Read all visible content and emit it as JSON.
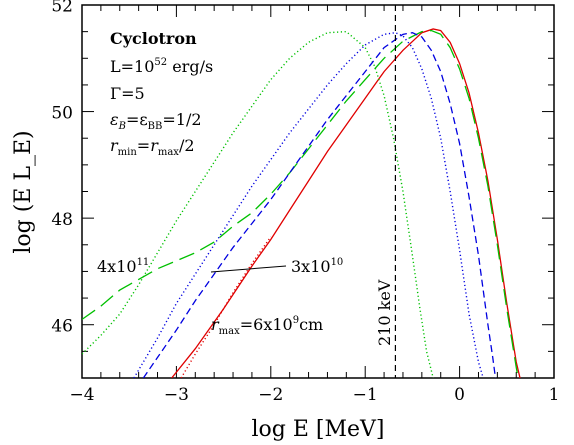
{
  "chart_data": {
    "type": "line",
    "xlabel": "log E [MeV]",
    "ylabel": "log (E L_E)",
    "xlim": [
      -4,
      1
    ],
    "ylim": [
      45,
      52
    ],
    "x_ticks": [
      "−4",
      "−3",
      "−2",
      "−1",
      "0",
      "1"
    ],
    "y_ticks": [
      "46",
      "48",
      "50",
      "52"
    ],
    "grid": false,
    "annotations": {
      "title": "Cyclotron",
      "luminosity": "L=10",
      "luminosity_exp": "52",
      "luminosity_unit": " erg/s",
      "gamma": "Γ=5",
      "eps_b": "ε",
      "eps_b_sub": "B",
      "eps_eq": "=ε",
      "eps_bb_sub": "BB",
      "eps_val": "=1/2",
      "r_min": "r",
      "r_min_sub": "min",
      "r_eq": "=r",
      "r_max_sub": "max",
      "r_val": "/2",
      "vline_label": "210 keV",
      "vline_x": -0.68,
      "label_4e11": "4x10",
      "label_4e11_exp": "11",
      "label_3e10": "3x10",
      "label_3e10_exp": "10",
      "label_6e9_r": "r",
      "label_6e9_sub": "max",
      "label_6e9_val": "=6x10",
      "label_6e9_exp": "9",
      "label_6e9_unit": "cm"
    },
    "series": [
      {
        "color": "#e00000",
        "dash": "solid",
        "x": [
          -3.05,
          -2.8,
          -2.5,
          -2.2,
          -2.0,
          -1.8,
          -1.6,
          -1.4,
          -1.2,
          -1.0,
          -0.8,
          -0.6,
          -0.4,
          -0.28,
          -0.2,
          -0.1,
          0.0,
          0.1,
          0.2,
          0.3,
          0.4,
          0.5,
          0.6,
          0.64
        ],
        "y": [
          45.0,
          45.55,
          46.3,
          47.1,
          47.6,
          48.15,
          48.7,
          49.25,
          49.75,
          50.25,
          50.75,
          51.15,
          51.48,
          51.55,
          51.52,
          51.3,
          50.9,
          50.35,
          49.6,
          48.7,
          47.6,
          46.4,
          45.3,
          45.0
        ]
      },
      {
        "color": "#e00000",
        "dash": "dotted",
        "x": [
          -2.95,
          -2.8,
          -2.6,
          -2.4,
          -2.2,
          -2.0
        ],
        "y": [
          45.0,
          45.45,
          46.0,
          46.6,
          47.15,
          47.65
        ]
      },
      {
        "color": "#00c000",
        "dash": "longdash",
        "x": [
          -4.0,
          -3.8,
          -3.6,
          -3.4,
          -3.2,
          -3.0,
          -2.8,
          -2.6,
          -2.4,
          -2.2,
          -2.0,
          -1.8,
          -1.6,
          -1.4,
          -1.2,
          -1.0,
          -0.8,
          -0.6,
          -0.4,
          -0.3,
          -0.2,
          -0.1,
          0.0,
          0.1,
          0.2,
          0.3,
          0.4,
          0.5,
          0.6,
          0.62
        ],
        "y": [
          46.1,
          46.35,
          46.65,
          46.85,
          47.05,
          47.2,
          47.35,
          47.55,
          47.85,
          48.1,
          48.45,
          48.85,
          49.3,
          49.75,
          50.2,
          50.6,
          51.0,
          51.32,
          51.5,
          51.52,
          51.45,
          51.2,
          50.8,
          50.25,
          49.5,
          48.6,
          47.5,
          46.3,
          45.2,
          45.0
        ]
      },
      {
        "color": "#00c000",
        "dash": "dotted",
        "x": [
          -4.0,
          -3.8,
          -3.6,
          -3.4,
          -3.2,
          -3.0,
          -2.8,
          -2.6,
          -2.4,
          -2.2,
          -2.0,
          -1.8,
          -1.6,
          -1.4,
          -1.2,
          -1.0,
          -0.9,
          -0.8,
          -0.7,
          -0.6,
          -0.5,
          -0.42,
          -0.35,
          -0.28
        ],
        "y": [
          45.45,
          45.8,
          46.2,
          46.75,
          47.35,
          47.95,
          48.5,
          49.05,
          49.6,
          50.1,
          50.6,
          51.0,
          51.3,
          51.48,
          51.5,
          51.2,
          50.85,
          50.3,
          49.5,
          48.5,
          47.3,
          46.3,
          45.5,
          45.0
        ]
      },
      {
        "color": "#0000e0",
        "dash": "dashed",
        "x": [
          -3.35,
          -3.0,
          -2.8,
          -2.6,
          -2.4,
          -2.2,
          -2.0,
          -1.8,
          -1.6,
          -1.4,
          -1.2,
          -1.0,
          -0.8,
          -0.6,
          -0.5,
          -0.4,
          -0.3,
          -0.2,
          -0.1,
          0.0,
          0.1,
          0.2,
          0.3,
          0.35,
          0.38
        ],
        "y": [
          45.0,
          45.9,
          46.45,
          46.95,
          47.45,
          47.9,
          48.35,
          48.85,
          49.35,
          49.85,
          50.3,
          50.75,
          51.2,
          51.45,
          51.48,
          51.4,
          51.15,
          50.75,
          50.15,
          49.4,
          48.4,
          47.3,
          46.0,
          45.4,
          45.0
        ]
      },
      {
        "color": "#0000e0",
        "dash": "dotted",
        "x": [
          -3.45,
          -3.2,
          -3.0,
          -2.8,
          -2.6,
          -2.4,
          -2.2,
          -2.0,
          -1.8,
          -1.6,
          -1.4,
          -1.2,
          -1.0,
          -0.8,
          -0.68,
          -0.6,
          -0.5,
          -0.4,
          -0.3,
          -0.2,
          -0.1,
          0.0,
          0.1,
          0.2,
          0.25
        ],
        "y": [
          45.0,
          45.75,
          46.4,
          46.95,
          47.5,
          48.05,
          48.6,
          49.1,
          49.6,
          50.05,
          50.5,
          50.9,
          51.25,
          51.45,
          51.48,
          51.42,
          51.2,
          50.8,
          50.25,
          49.5,
          48.5,
          47.4,
          46.2,
          45.3,
          45.0
        ]
      }
    ],
    "vlines": [
      {
        "x": -0.68,
        "color": "#000000",
        "dash": "dashed"
      }
    ]
  }
}
